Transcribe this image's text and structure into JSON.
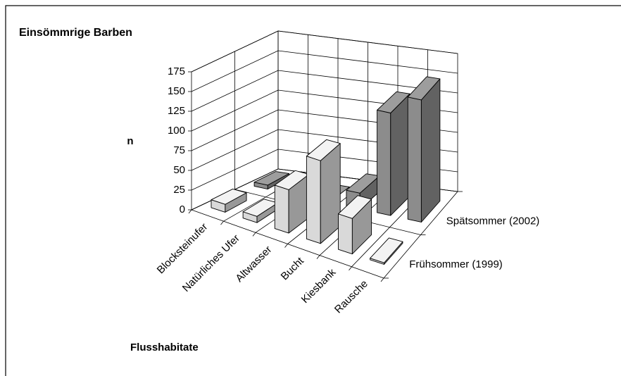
{
  "chart_data": {
    "type": "bar3d",
    "title": "Einsömmrige Barben",
    "ylabel": "n",
    "xlabel": "Flusshabitate",
    "categories": [
      "Blocksteinufer",
      "Natürliches Ufer",
      "Altwasser",
      "Bucht",
      "Kiesbank",
      "Rausche"
    ],
    "series": [
      {
        "name": "Frühsommer (1999)",
        "color": "#d9d9d9",
        "values": [
          10,
          8,
          55,
          105,
          45,
          2
        ]
      },
      {
        "name": "Spätsommer (2002)",
        "color": "#8c8c8c",
        "values": [
          5,
          5,
          0,
          20,
          130,
          155
        ]
      }
    ],
    "ylim": [
      0,
      175
    ],
    "yticks": [
      0,
      25,
      50,
      75,
      100,
      125,
      150,
      175
    ],
    "grid": true
  }
}
